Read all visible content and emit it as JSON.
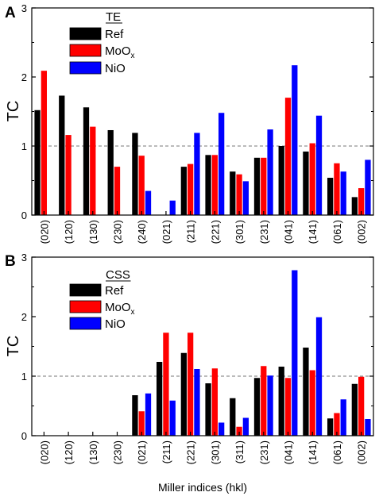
{
  "chart_data": [
    {
      "type": "bar",
      "panel_label": "A",
      "legend_title": "TE",
      "ylabel": "TC",
      "xlabel": "",
      "ylim": [
        0,
        3
      ],
      "yticks": [
        "0",
        "1",
        "2",
        "3"
      ],
      "reference_line": 1,
      "categories": [
        "(020)",
        "(120)",
        "(130)",
        "(230)",
        "(240)",
        "(021)",
        "(211)",
        "(221)",
        "(301)",
        "(231)",
        "(041)",
        "(141)",
        "(061)",
        "(002)"
      ],
      "series": [
        {
          "name": "Ref",
          "color": "#000000",
          "values": [
            1.52,
            1.73,
            1.56,
            1.23,
            1.19,
            null,
            0.7,
            0.87,
            0.63,
            0.83,
            1.0,
            0.92,
            0.54,
            0.26
          ]
        },
        {
          "name": "MoO",
          "name_sub": "x",
          "color": "#ff0000",
          "values": [
            2.09,
            1.16,
            1.28,
            0.7,
            0.86,
            null,
            0.74,
            0.87,
            0.59,
            0.83,
            1.7,
            1.04,
            0.75,
            0.39
          ]
        },
        {
          "name": "NiO",
          "color": "#0000ff",
          "values": [
            null,
            null,
            null,
            null,
            0.35,
            0.21,
            1.19,
            1.48,
            0.49,
            1.24,
            2.17,
            1.44,
            0.63,
            0.8
          ]
        }
      ]
    },
    {
      "type": "bar",
      "panel_label": "B",
      "legend_title": "CSS",
      "ylabel": "TC",
      "xlabel": "Miller indices (hkl)",
      "ylim": [
        0,
        3
      ],
      "yticks": [
        "0",
        "1",
        "2",
        "3"
      ],
      "reference_line": 1,
      "categories": [
        "(020)",
        "(120)",
        "(130)",
        "(230)",
        "(021)",
        "(211)",
        "(221)",
        "(301)",
        "(311)",
        "(231)",
        "(041)",
        "(141)",
        "(061)",
        "(002)"
      ],
      "series": [
        {
          "name": "Ref",
          "color": "#000000",
          "values": [
            null,
            null,
            null,
            null,
            0.68,
            1.24,
            1.39,
            0.88,
            0.63,
            0.97,
            1.16,
            1.48,
            0.29,
            0.87
          ]
        },
        {
          "name": "MoO",
          "name_sub": "x",
          "color": "#ff0000",
          "values": [
            null,
            null,
            null,
            null,
            0.41,
            1.73,
            1.73,
            1.13,
            0.15,
            1.17,
            0.97,
            1.1,
            0.38,
            0.99
          ]
        },
        {
          "name": "NiO",
          "color": "#0000ff",
          "values": [
            null,
            null,
            null,
            null,
            0.71,
            0.59,
            1.12,
            0.22,
            0.3,
            1.01,
            2.78,
            1.99,
            0.61,
            0.28
          ]
        }
      ]
    }
  ]
}
